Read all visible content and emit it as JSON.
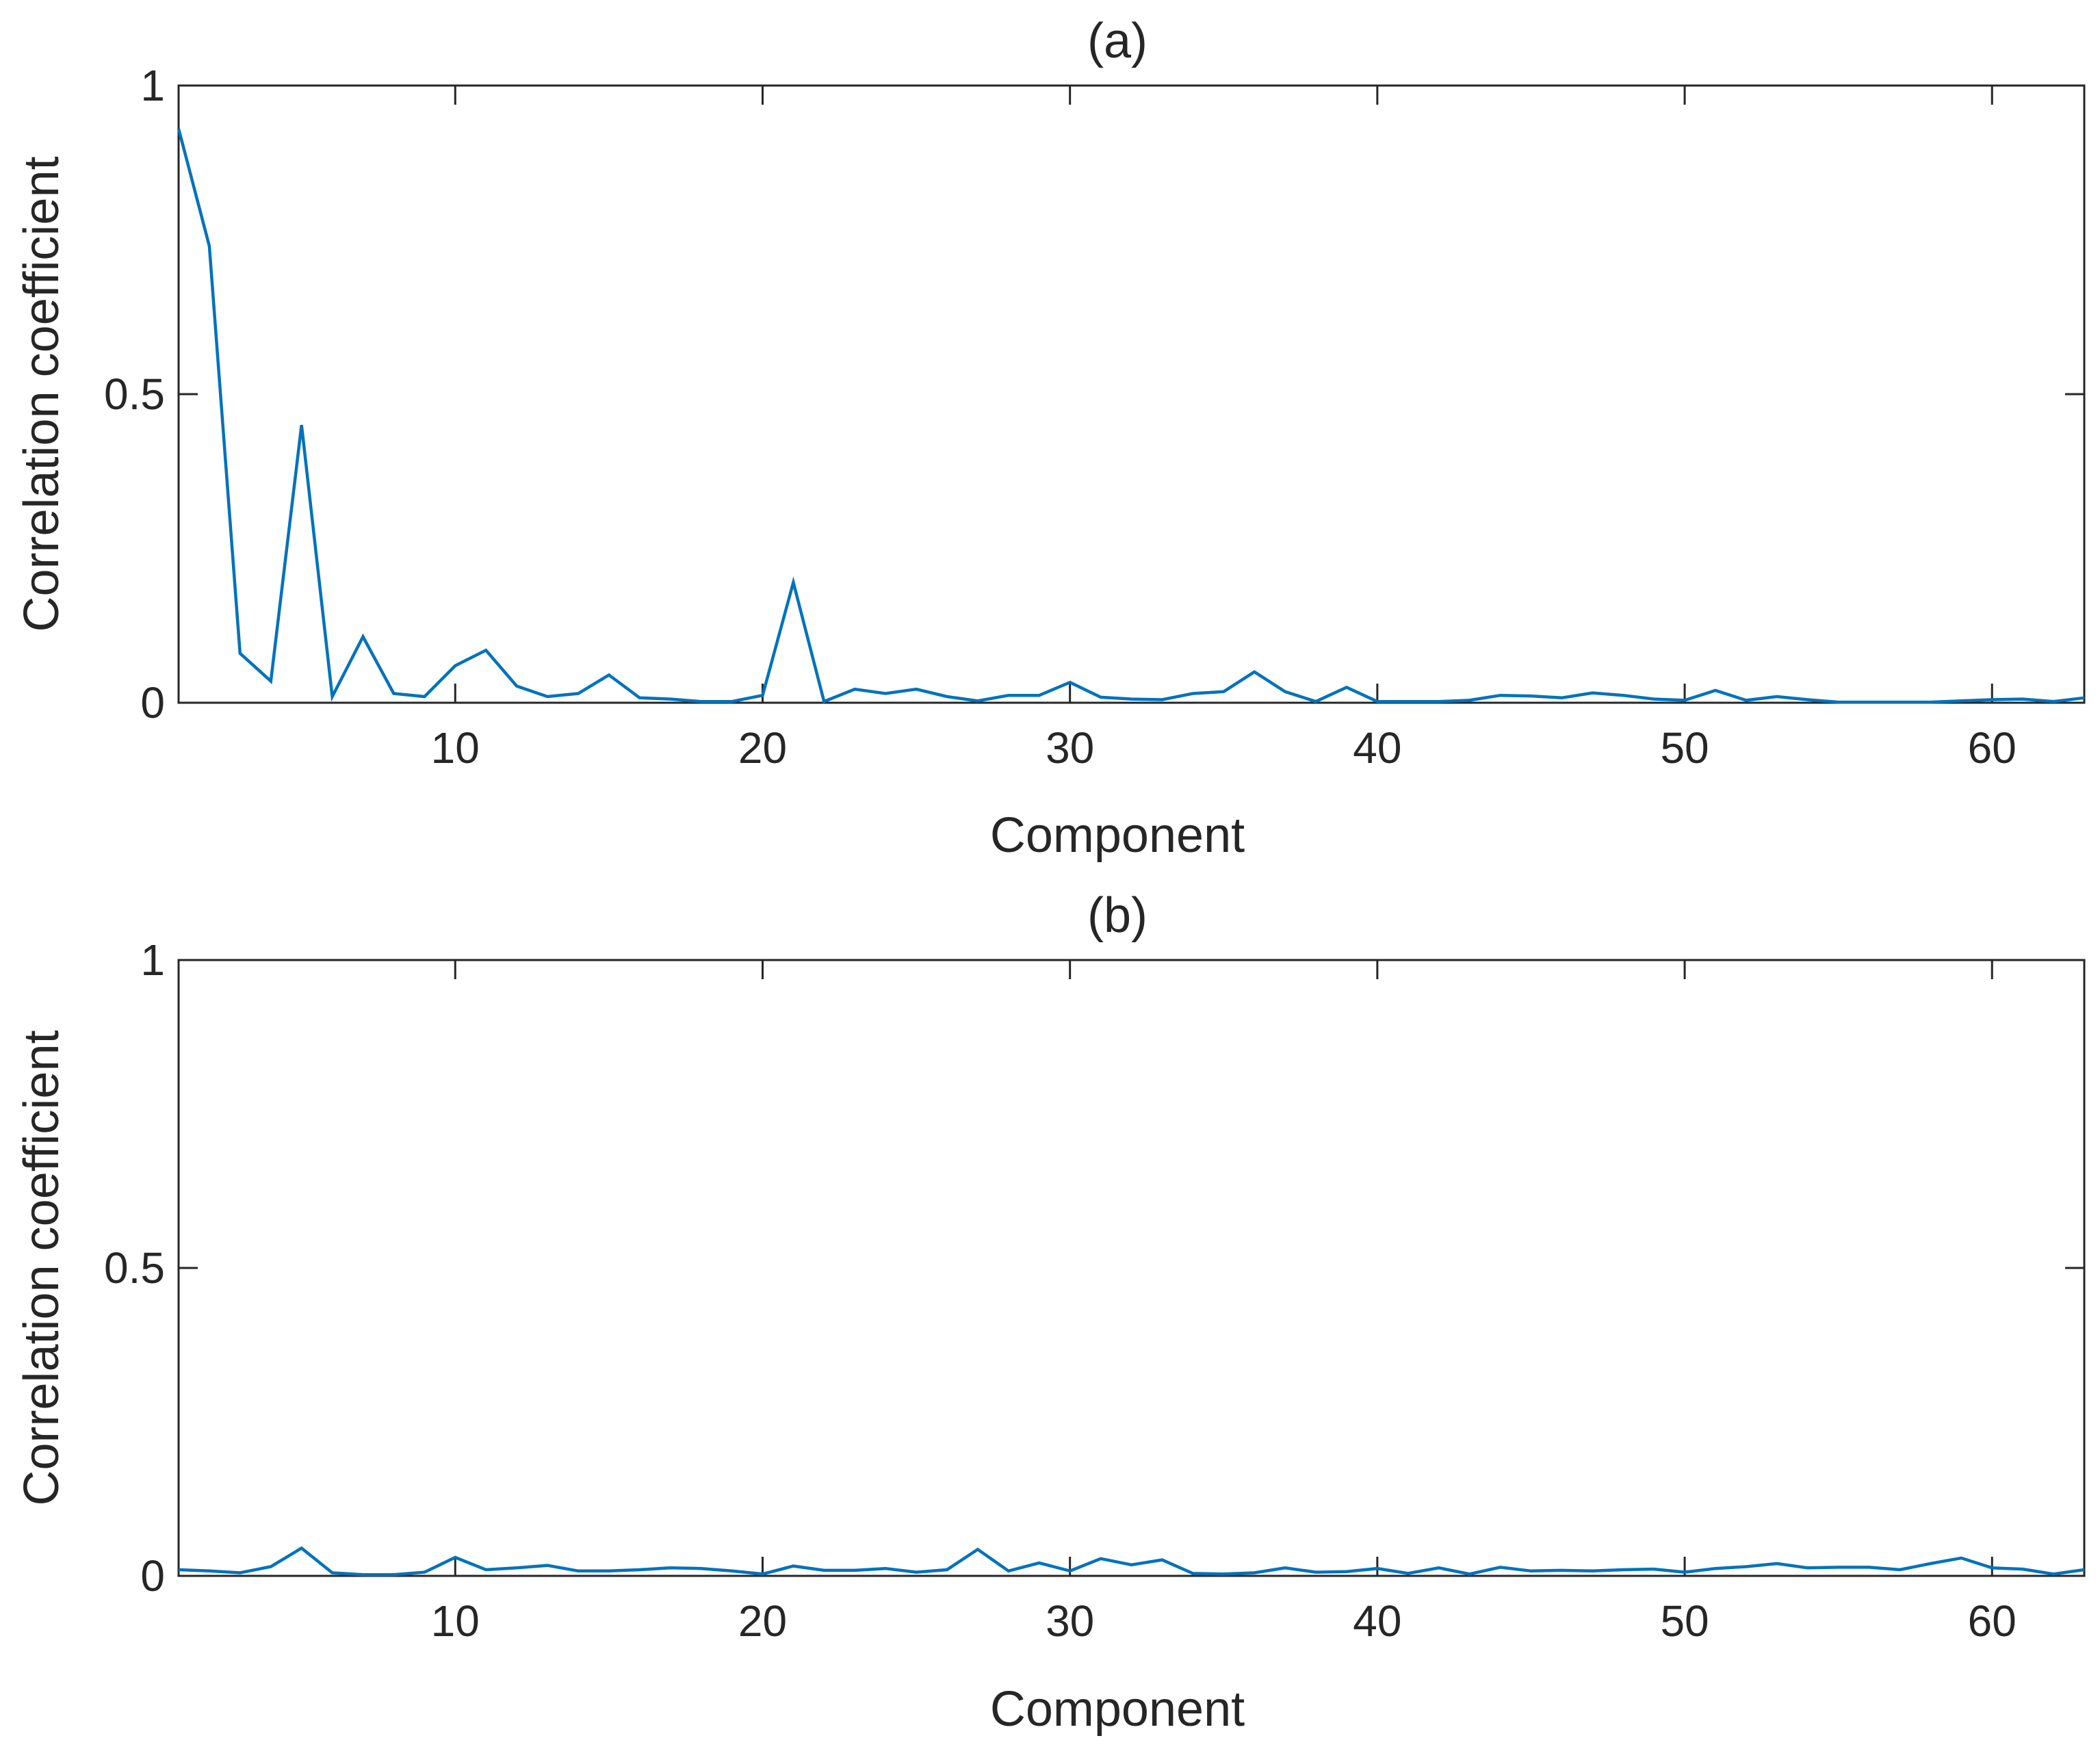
{
  "chart_data": [
    {
      "type": "line",
      "title": "(a)",
      "xlabel": "Component",
      "ylabel": "Correlation coefficient",
      "xlim": [
        1,
        63
      ],
      "ylim": [
        0,
        1
      ],
      "xticks": [
        10,
        20,
        30,
        40,
        50,
        60
      ],
      "yticks": [
        0,
        0.5,
        1
      ],
      "ytick_labels": [
        "0",
        "0.5",
        "1"
      ],
      "grid": false,
      "color": "#0072BD",
      "x": [
        1,
        2,
        3,
        4,
        5,
        6,
        7,
        8,
        9,
        10,
        11,
        12,
        13,
        14,
        15,
        16,
        17,
        18,
        19,
        20,
        21,
        22,
        23,
        24,
        25,
        26,
        27,
        28,
        29,
        30,
        31,
        32,
        33,
        34,
        35,
        36,
        37,
        38,
        39,
        40,
        41,
        42,
        43,
        44,
        45,
        46,
        47,
        48,
        49,
        50,
        51,
        52,
        53,
        54,
        55,
        56,
        57,
        58,
        59,
        60,
        61,
        62,
        63
      ],
      "series": [
        {
          "values": [
            0.93,
            0.74,
            0.08,
            0.035,
            0.45,
            0.01,
            0.107,
            0.015,
            0.01,
            0.06,
            0.085,
            0.027,
            0.01,
            0.015,
            0.045,
            0.008,
            0.006,
            0.002,
            0.002,
            0.012,
            0.195,
            0.002,
            0.022,
            0.015,
            0.022,
            0.01,
            0.003,
            0.012,
            0.012,
            0.033,
            0.009,
            0.006,
            0.005,
            0.015,
            0.018,
            0.05,
            0.018,
            0.002,
            0.025,
            0.002,
            0.002,
            0.002,
            0.004,
            0.012,
            0.011,
            0.008,
            0.016,
            0.012,
            0.006,
            0.004,
            0.02,
            0.004,
            0.01,
            0.005,
            0.001,
            0.001,
            0.001,
            0.001,
            0.003,
            0.005,
            0.006,
            0.002,
            0.008
          ]
        }
      ]
    },
    {
      "type": "line",
      "title": "(b)",
      "xlabel": "Component",
      "ylabel": "Correlation coefficient",
      "xlim": [
        1,
        63
      ],
      "ylim": [
        0,
        1
      ],
      "xticks": [
        10,
        20,
        30,
        40,
        50,
        60
      ],
      "yticks": [
        0,
        0.5,
        1
      ],
      "ytick_labels": [
        "0",
        "0.5",
        "1"
      ],
      "grid": false,
      "color": "#0072BD",
      "x": [
        1,
        2,
        3,
        4,
        5,
        6,
        7,
        8,
        9,
        10,
        11,
        12,
        13,
        14,
        15,
        16,
        17,
        18,
        19,
        20,
        21,
        22,
        23,
        24,
        25,
        26,
        27,
        28,
        29,
        30,
        31,
        32,
        33,
        34,
        35,
        36,
        37,
        38,
        39,
        40,
        41,
        42,
        43,
        44,
        45,
        46,
        47,
        48,
        49,
        50,
        51,
        52,
        53,
        54,
        55,
        56,
        57,
        58,
        59,
        60,
        61,
        62,
        63
      ],
      "series": [
        {
          "values": [
            0.01,
            0.008,
            0.005,
            0.015,
            0.045,
            0.005,
            0.002,
            0.002,
            0.006,
            0.03,
            0.01,
            0.013,
            0.017,
            0.008,
            0.008,
            0.01,
            0.013,
            0.012,
            0.008,
            0.003,
            0.016,
            0.009,
            0.009,
            0.012,
            0.006,
            0.01,
            0.043,
            0.008,
            0.021,
            0.008,
            0.028,
            0.018,
            0.026,
            0.004,
            0.003,
            0.005,
            0.013,
            0.006,
            0.007,
            0.012,
            0.004,
            0.013,
            0.003,
            0.014,
            0.008,
            0.009,
            0.008,
            0.01,
            0.011,
            0.006,
            0.012,
            0.015,
            0.02,
            0.013,
            0.014,
            0.014,
            0.01,
            0.02,
            0.029,
            0.013,
            0.011,
            0.003,
            0.01
          ]
        }
      ]
    }
  ]
}
